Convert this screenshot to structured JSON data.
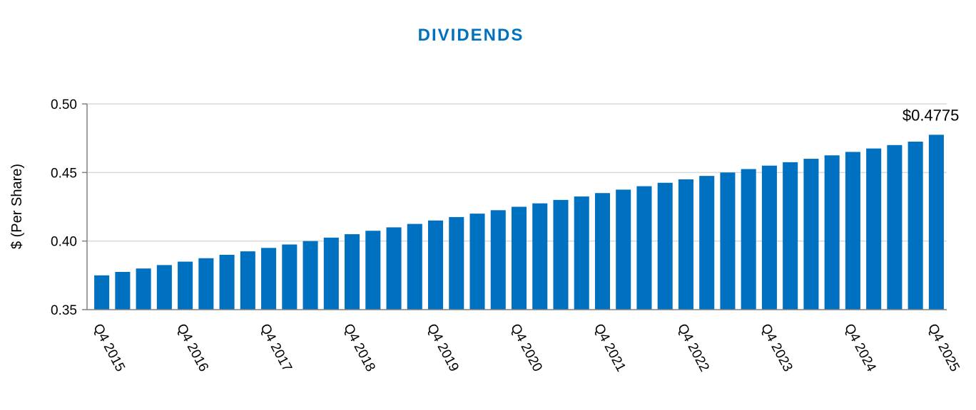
{
  "colors": {
    "bar": "#0070C0",
    "title": "#0070C0",
    "grid": "#d9d9d9",
    "axis": "#808080"
  },
  "chart_data": {
    "type": "bar",
    "title": "DIVIDENDS",
    "xlabel": "",
    "ylabel": "$ (Per Share)",
    "ylim": [
      0.35,
      0.5
    ],
    "yticks": [
      "0.35",
      "0.40",
      "0.45",
      "0.50"
    ],
    "grid": true,
    "categories": [
      "Q4 2015",
      "Q1 2016",
      "Q2 2016",
      "Q3 2016",
      "Q4 2016",
      "Q1 2017",
      "Q2 2017",
      "Q3 2017",
      "Q4 2017",
      "Q1 2018",
      "Q2 2018",
      "Q3 2018",
      "Q4 2018",
      "Q1 2019",
      "Q2 2019",
      "Q3 2019",
      "Q4 2019",
      "Q1 2020",
      "Q2 2020",
      "Q3 2020",
      "Q4 2020",
      "Q1 2021",
      "Q2 2021",
      "Q3 2021",
      "Q4 2021",
      "Q1 2022",
      "Q2 2022",
      "Q3 2022",
      "Q4 2022",
      "Q1 2023",
      "Q2 2023",
      "Q3 2023",
      "Q4 2023",
      "Q1 2024",
      "Q2 2024",
      "Q3 2024",
      "Q4 2024",
      "Q1 2025",
      "Q2 2025",
      "Q3 2025",
      "Q4 2025"
    ],
    "shown_tick_labels": [
      "Q4 2015",
      "Q4 2016",
      "Q4 2017",
      "Q4 2018",
      "Q4 2019",
      "Q4 2020",
      "Q4 2021",
      "Q4 2022",
      "Q4 2023",
      "Q4 2024",
      "Q4 2025"
    ],
    "values": [
      0.375,
      0.3775,
      0.38,
      0.3825,
      0.385,
      0.3875,
      0.39,
      0.3925,
      0.395,
      0.3975,
      0.4,
      0.4025,
      0.405,
      0.4075,
      0.41,
      0.4125,
      0.415,
      0.4175,
      0.42,
      0.4225,
      0.425,
      0.4275,
      0.43,
      0.4325,
      0.435,
      0.4375,
      0.44,
      0.4425,
      0.445,
      0.4475,
      0.45,
      0.4525,
      0.455,
      0.4575,
      0.46,
      0.4625,
      0.465,
      0.4675,
      0.47,
      0.4725,
      0.4775
    ],
    "annotations": [
      {
        "category": "Q4 2025",
        "text": "$0.4775"
      }
    ]
  }
}
